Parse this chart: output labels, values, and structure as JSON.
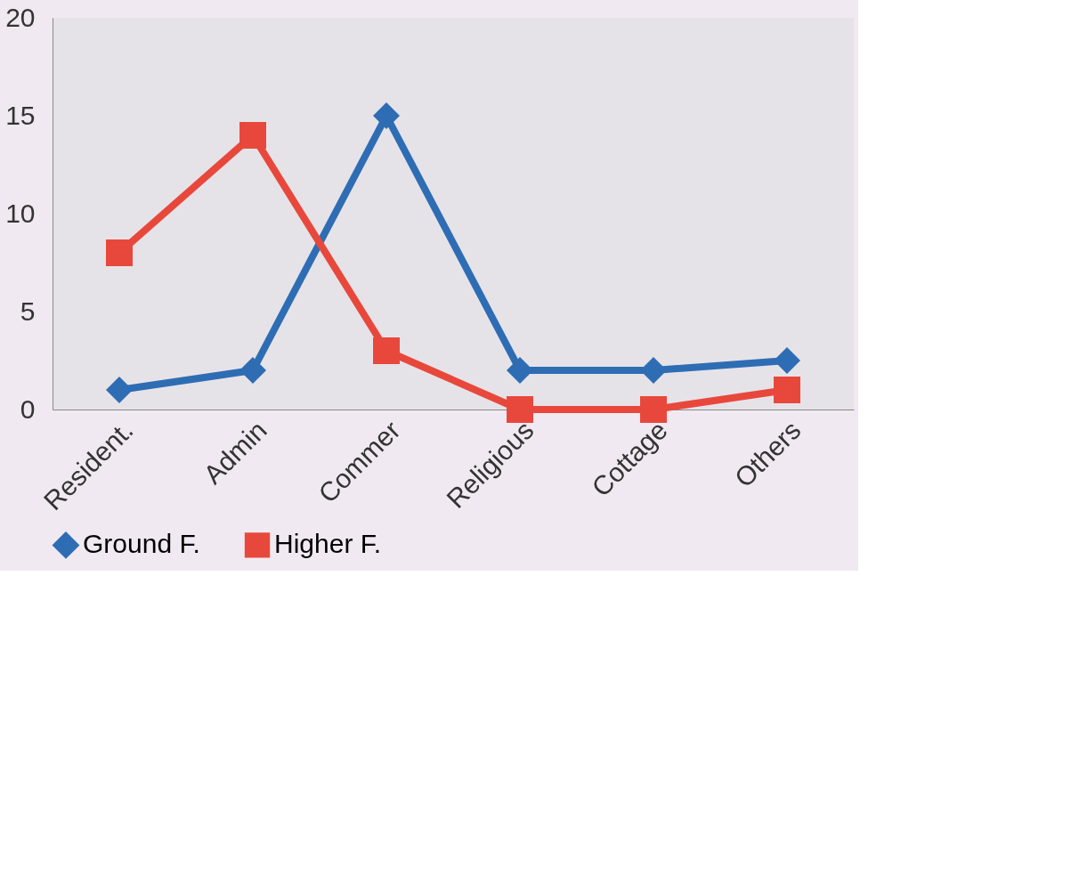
{
  "chart_data": {
    "type": "line",
    "categories": [
      "Resident.",
      "Admin",
      "Commer",
      "Religious",
      "Cottage",
      "Others"
    ],
    "series": [
      {
        "name": "Ground F.",
        "color": "#2e6db4",
        "marker": "diamond",
        "values": [
          1,
          2,
          15,
          2,
          2,
          2.5
        ]
      },
      {
        "name": "Higher F.",
        "color": "#e8483c",
        "marker": "square",
        "values": [
          8,
          14,
          3,
          0,
          0,
          1
        ]
      }
    ],
    "ylim": [
      0,
      20
    ],
    "yticks": [
      0,
      5,
      10,
      15,
      20
    ],
    "grid": false,
    "legend": "bottom",
    "line_style": "solid"
  }
}
